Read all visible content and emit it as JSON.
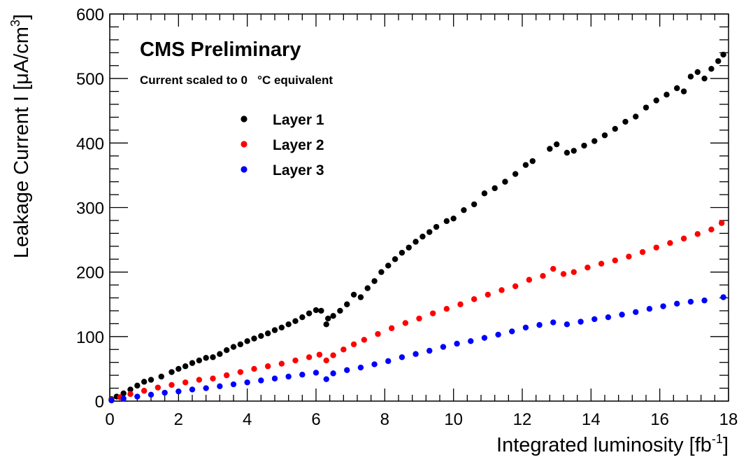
{
  "chart_data": {
    "type": "scatter",
    "title": "CMS Preliminary",
    "subtitle": "Current scaled to 0   °C equivalent",
    "xlabel": {
      "main": "Integrated luminosity [fb",
      "sup": "-1",
      "end": "]"
    },
    "ylabel": {
      "main": "Leakage Current I [μA/cm",
      "sup": "3",
      "end": "]"
    },
    "xlim": [
      0,
      18
    ],
    "ylim": [
      0,
      600
    ],
    "xticks": [
      0,
      2,
      4,
      6,
      8,
      10,
      12,
      14,
      16,
      18
    ],
    "yticks": [
      0,
      100,
      200,
      300,
      400,
      500,
      600
    ],
    "grid": false,
    "legend_position": "top-left",
    "series": [
      {
        "name": "Layer 1",
        "color": "#000000",
        "points": [
          [
            0.05,
            3
          ],
          [
            0.2,
            7
          ],
          [
            0.4,
            12
          ],
          [
            0.6,
            18
          ],
          [
            0.8,
            24
          ],
          [
            1.0,
            30
          ],
          [
            1.2,
            33
          ],
          [
            1.5,
            38
          ],
          [
            1.8,
            45
          ],
          [
            2.0,
            50
          ],
          [
            2.2,
            54
          ],
          [
            2.4,
            59
          ],
          [
            2.6,
            63
          ],
          [
            2.8,
            67
          ],
          [
            3.0,
            68
          ],
          [
            3.2,
            73
          ],
          [
            3.4,
            79
          ],
          [
            3.6,
            84
          ],
          [
            3.8,
            88
          ],
          [
            4.0,
            93
          ],
          [
            4.2,
            97
          ],
          [
            4.4,
            101
          ],
          [
            4.6,
            105
          ],
          [
            4.8,
            110
          ],
          [
            5.0,
            114
          ],
          [
            5.2,
            119
          ],
          [
            5.4,
            124
          ],
          [
            5.6,
            130
          ],
          [
            5.8,
            136
          ],
          [
            6.0,
            141
          ],
          [
            6.15,
            140
          ],
          [
            6.3,
            119
          ],
          [
            6.35,
            128
          ],
          [
            6.5,
            132
          ],
          [
            6.7,
            140
          ],
          [
            6.9,
            150
          ],
          [
            7.1,
            165
          ],
          [
            7.3,
            161
          ],
          [
            7.5,
            175
          ],
          [
            7.7,
            186
          ],
          [
            7.9,
            200
          ],
          [
            8.1,
            210
          ],
          [
            8.3,
            220
          ],
          [
            8.5,
            230
          ],
          [
            8.7,
            238
          ],
          [
            8.9,
            247
          ],
          [
            9.1,
            255
          ],
          [
            9.3,
            262
          ],
          [
            9.5,
            270
          ],
          [
            9.8,
            279
          ],
          [
            10.0,
            283
          ],
          [
            10.3,
            296
          ],
          [
            10.6,
            305
          ],
          [
            10.9,
            322
          ],
          [
            11.2,
            330
          ],
          [
            11.5,
            340
          ],
          [
            11.8,
            352
          ],
          [
            12.1,
            366
          ],
          [
            12.3,
            372
          ],
          [
            12.8,
            391
          ],
          [
            13.0,
            398
          ],
          [
            13.3,
            385
          ],
          [
            13.5,
            388
          ],
          [
            13.8,
            396
          ],
          [
            14.1,
            403
          ],
          [
            14.4,
            412
          ],
          [
            14.7,
            422
          ],
          [
            15.0,
            433
          ],
          [
            15.3,
            441
          ],
          [
            15.6,
            455
          ],
          [
            15.9,
            466
          ],
          [
            16.2,
            475
          ],
          [
            16.5,
            485
          ],
          [
            16.7,
            480
          ],
          [
            16.9,
            503
          ],
          [
            17.1,
            510
          ],
          [
            17.3,
            500
          ],
          [
            17.5,
            515
          ],
          [
            17.7,
            527
          ],
          [
            17.85,
            537
          ]
        ]
      },
      {
        "name": "Layer 2",
        "color": "#ff0000",
        "points": [
          [
            0.05,
            2
          ],
          [
            0.3,
            6
          ],
          [
            0.6,
            11
          ],
          [
            1.0,
            16
          ],
          [
            1.4,
            21
          ],
          [
            1.8,
            25
          ],
          [
            2.2,
            29
          ],
          [
            2.6,
            33
          ],
          [
            3.0,
            35
          ],
          [
            3.4,
            40
          ],
          [
            3.8,
            45
          ],
          [
            4.2,
            50
          ],
          [
            4.6,
            54
          ],
          [
            5.0,
            58
          ],
          [
            5.4,
            63
          ],
          [
            5.8,
            68
          ],
          [
            6.1,
            72
          ],
          [
            6.3,
            63
          ],
          [
            6.5,
            71
          ],
          [
            6.8,
            80
          ],
          [
            7.1,
            88
          ],
          [
            7.4,
            95
          ],
          [
            7.8,
            104
          ],
          [
            8.2,
            113
          ],
          [
            8.6,
            121
          ],
          [
            9.0,
            128
          ],
          [
            9.4,
            136
          ],
          [
            9.8,
            143
          ],
          [
            10.2,
            150
          ],
          [
            10.6,
            158
          ],
          [
            11.0,
            165
          ],
          [
            11.4,
            172
          ],
          [
            11.8,
            178
          ],
          [
            12.2,
            188
          ],
          [
            12.6,
            194
          ],
          [
            12.9,
            205
          ],
          [
            13.2,
            197
          ],
          [
            13.5,
            200
          ],
          [
            13.9,
            207
          ],
          [
            14.3,
            213
          ],
          [
            14.7,
            218
          ],
          [
            15.1,
            224
          ],
          [
            15.5,
            231
          ],
          [
            15.9,
            238
          ],
          [
            16.3,
            245
          ],
          [
            16.7,
            252
          ],
          [
            17.1,
            259
          ],
          [
            17.5,
            266
          ],
          [
            17.8,
            276
          ]
        ]
      },
      {
        "name": "Layer 3",
        "color": "#0000ff",
        "points": [
          [
            0.05,
            1
          ],
          [
            0.4,
            4
          ],
          [
            0.8,
            7
          ],
          [
            1.2,
            10
          ],
          [
            1.6,
            13
          ],
          [
            2.0,
            15
          ],
          [
            2.4,
            18
          ],
          [
            2.8,
            20
          ],
          [
            3.2,
            23
          ],
          [
            3.6,
            26
          ],
          [
            4.0,
            29
          ],
          [
            4.4,
            32
          ],
          [
            4.8,
            35
          ],
          [
            5.2,
            38
          ],
          [
            5.6,
            41
          ],
          [
            6.0,
            44
          ],
          [
            6.3,
            34
          ],
          [
            6.5,
            43
          ],
          [
            6.9,
            48
          ],
          [
            7.3,
            52
          ],
          [
            7.7,
            57
          ],
          [
            8.1,
            62
          ],
          [
            8.5,
            68
          ],
          [
            8.9,
            73
          ],
          [
            9.3,
            78
          ],
          [
            9.7,
            84
          ],
          [
            10.1,
            89
          ],
          [
            10.5,
            93
          ],
          [
            10.9,
            98
          ],
          [
            11.3,
            103
          ],
          [
            11.7,
            108
          ],
          [
            12.1,
            114
          ],
          [
            12.5,
            118
          ],
          [
            12.9,
            122
          ],
          [
            13.3,
            119
          ],
          [
            13.7,
            123
          ],
          [
            14.1,
            127
          ],
          [
            14.5,
            130
          ],
          [
            14.9,
            134
          ],
          [
            15.3,
            138
          ],
          [
            15.7,
            143
          ],
          [
            16.1,
            147
          ],
          [
            16.5,
            151
          ],
          [
            16.9,
            154
          ],
          [
            17.3,
            156
          ],
          [
            17.85,
            161
          ]
        ]
      }
    ]
  }
}
